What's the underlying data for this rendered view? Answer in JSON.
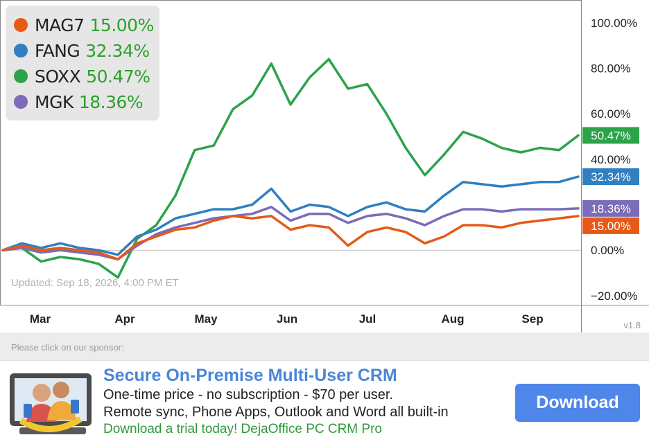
{
  "legend": [
    {
      "name": "MAG7",
      "value": "15.00%",
      "color": "#e55a17"
    },
    {
      "name": "FANG",
      "value": "32.34%",
      "color": "#2f7fc1"
    },
    {
      "name": "SOXX",
      "value": "50.47%",
      "color": "#2ca34a"
    },
    {
      "name": "MGK",
      "value": "18.36%",
      "color": "#7b6bb8"
    }
  ],
  "updated": "Updated: Sep 18, 2026, 4:00 PM ET",
  "version": "v1.8",
  "sponsor": {
    "note": "Please click on our sponsor:",
    "headline": "Secure On-Premise Multi-User CRM",
    "line1": "One-time price - no subscription - $70 per user.",
    "line2": "Remote sync, Phone Apps, Outlook and Word all built-in",
    "cta_text": "Download a trial today! DejaOffice PC CRM Pro",
    "button_label": "Download",
    "icon": "crm-users-icon"
  },
  "chart_data": {
    "type": "line",
    "x": [
      "Feb 24",
      "Mar 3",
      "Mar 10",
      "Mar 17",
      "Mar 24",
      "Mar 31",
      "Apr 7",
      "Apr 14",
      "Apr 21",
      "Apr 28",
      "May 5",
      "May 12",
      "May 19",
      "May 26",
      "Jun 2",
      "Jun 9",
      "Jun 16",
      "Jun 23",
      "Jun 30",
      "Jul 7",
      "Jul 14",
      "Jul 21",
      "Jul 28",
      "Aug 4",
      "Aug 11",
      "Aug 18",
      "Aug 25",
      "Sep 1",
      "Sep 8",
      "Sep 15",
      "Sep 18"
    ],
    "x_ticks": [
      "Mar",
      "Apr",
      "May",
      "Jun",
      "Jul",
      "Aug",
      "Sep"
    ],
    "series": [
      {
        "name": "SOXX",
        "color": "#2ca34a",
        "values": [
          0,
          1,
          -5,
          -3,
          -4,
          -6,
          -12,
          5,
          11,
          24,
          44,
          46,
          62,
          68,
          82,
          64,
          76,
          84,
          71,
          73,
          60,
          45,
          33,
          42,
          52,
          49,
          45,
          43,
          45,
          44,
          50.47
        ]
      },
      {
        "name": "FANG",
        "color": "#2f7fc1",
        "values": [
          0,
          3,
          1,
          3,
          1,
          0,
          -2,
          6,
          9,
          14,
          16,
          18,
          18,
          20,
          27,
          17,
          20,
          19,
          15,
          19,
          21,
          18,
          17,
          24,
          30,
          29,
          28,
          29,
          30,
          30,
          32.34
        ]
      },
      {
        "name": "MGK",
        "color": "#7b6bb8",
        "values": [
          0,
          1,
          -1,
          0,
          -1,
          -2,
          -4,
          2,
          7,
          10,
          12,
          14,
          15,
          16,
          19,
          13,
          16,
          16,
          12,
          15,
          16,
          14,
          11,
          15,
          18,
          18,
          17,
          18,
          18,
          18,
          18.36
        ]
      },
      {
        "name": "MAG7",
        "color": "#e55a17",
        "values": [
          0,
          2,
          0,
          1,
          0,
          -1,
          -4,
          3,
          6,
          9,
          10,
          13,
          15,
          14,
          15,
          9,
          11,
          10,
          2,
          8,
          10,
          8,
          3,
          6,
          11,
          11,
          10,
          12,
          13,
          14,
          15.0
        ]
      }
    ],
    "y_ticks": [
      "100.00%",
      "80.00%",
      "60.00%",
      "40.00%",
      "20.00%",
      "0.00%",
      "−20.00%"
    ],
    "ylim": [
      -24,
      110
    ],
    "end_labels": [
      {
        "series": "SOXX",
        "text": "50.47%",
        "value": 50.47
      },
      {
        "series": "FANG",
        "text": "32.34%",
        "value": 32.34
      },
      {
        "series": "MGK",
        "text": "18.36%",
        "value": 18.36
      },
      {
        "series": "MAG7",
        "text": "15.00%",
        "value": 15.0
      }
    ],
    "zero_line": true,
    "legend_position": "top-left"
  }
}
